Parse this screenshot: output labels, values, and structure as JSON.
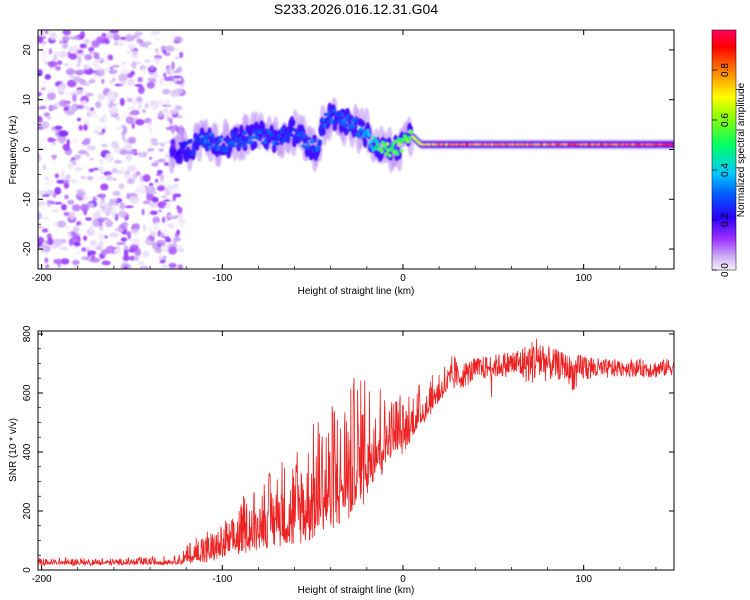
{
  "title": "S233.2026.016.12.31.G04",
  "chart_data": [
    {
      "type": "heatmap",
      "xlabel": "Height of straight line (km)",
      "ylabel": "Frequency (Hz)",
      "xlim": [
        -202,
        150
      ],
      "ylim": [
        -24,
        24
      ],
      "xticks": [
        -200,
        -100,
        0,
        100
      ],
      "yticks": [
        -20,
        -10,
        0,
        10,
        20
      ],
      "colorbar": {
        "label": "Normalized spectral amplitude",
        "range": [
          0,
          0.96
        ],
        "ticks": [
          "0.0",
          "0.2",
          "0.4",
          "0.6",
          "0.8"
        ],
        "colors": [
          "#f7f2fc",
          "#9b30ff",
          "#0000ff",
          "#00c8ff",
          "#00ff64",
          "#ffff00",
          "#ff8000",
          "#ff0000",
          "#ff0064"
        ]
      },
      "noise_region": {
        "x_start": -202,
        "x_end": -122,
        "max_amplitude": 0.15
      },
      "ridge": [
        {
          "x": -128,
          "f": 0,
          "a": 0.15
        },
        {
          "x": -120,
          "f": 0,
          "a": 0.25
        },
        {
          "x": -110,
          "f": 2,
          "a": 0.3
        },
        {
          "x": -100,
          "f": 1,
          "a": 0.3
        },
        {
          "x": -90,
          "f": 2,
          "a": 0.3
        },
        {
          "x": -80,
          "f": 3,
          "a": 0.3
        },
        {
          "x": -70,
          "f": 2,
          "a": 0.3
        },
        {
          "x": -62,
          "f": 4,
          "a": 0.25
        },
        {
          "x": -55,
          "f": 2,
          "a": 0.3
        },
        {
          "x": -48,
          "f": 0,
          "a": 0.3
        },
        {
          "x": -42,
          "f": 7,
          "a": 0.3
        },
        {
          "x": -35,
          "f": 6,
          "a": 0.3
        },
        {
          "x": -28,
          "f": 5,
          "a": 0.3
        },
        {
          "x": -20,
          "f": 3,
          "a": 0.35
        },
        {
          "x": -14,
          "f": 0,
          "a": 0.5
        },
        {
          "x": -6,
          "f": 0,
          "a": 0.6
        },
        {
          "x": 0,
          "f": 1,
          "a": 0.55
        },
        {
          "x": 4,
          "f": 3,
          "a": 0.6
        },
        {
          "x": 10,
          "f": 1,
          "a": 0.75
        },
        {
          "x": 30,
          "f": 1,
          "a": 0.85
        },
        {
          "x": 60,
          "f": 1,
          "a": 0.8
        },
        {
          "x": 100,
          "f": 1,
          "a": 0.85
        },
        {
          "x": 150,
          "f": 1,
          "a": 0.88
        }
      ]
    },
    {
      "type": "line",
      "xlabel": "Height of straight line (km)",
      "ylabel": "SNR (10 * v/v)",
      "xlim": [
        -202,
        150
      ],
      "ylim": [
        0,
        810
      ],
      "xticks": [
        -200,
        -100,
        0,
        100
      ],
      "yticks": [
        0,
        200,
        400,
        600,
        800
      ],
      "color": "#ee2222",
      "series": [
        {
          "name": "SNR",
          "x": [
            -202,
            -150,
            -125,
            -115,
            -100,
            -90,
            -80,
            -70,
            -60,
            -50,
            -40,
            -30,
            -20,
            -10,
            0,
            10,
            20,
            25,
            30,
            40,
            50,
            60,
            70,
            75,
            80,
            90,
            95,
            100,
            110,
            120,
            130,
            140,
            150
          ],
          "mean": [
            22,
            22,
            25,
            40,
            65,
            90,
            120,
            140,
            160,
            190,
            230,
            270,
            340,
            400,
            440,
            510,
            590,
            620,
            650,
            680,
            690,
            700,
            700,
            720,
            700,
            690,
            660,
            690,
            680,
            685,
            685,
            680,
            690
          ],
          "spread": [
            10,
            10,
            12,
            40,
            50,
            70,
            90,
            110,
            130,
            150,
            170,
            200,
            180,
            120,
            80,
            60,
            50,
            45,
            45,
            40,
            40,
            45,
            70,
            90,
            60,
            45,
            60,
            50,
            35,
            30,
            30,
            30,
            30
          ]
        }
      ]
    }
  ]
}
